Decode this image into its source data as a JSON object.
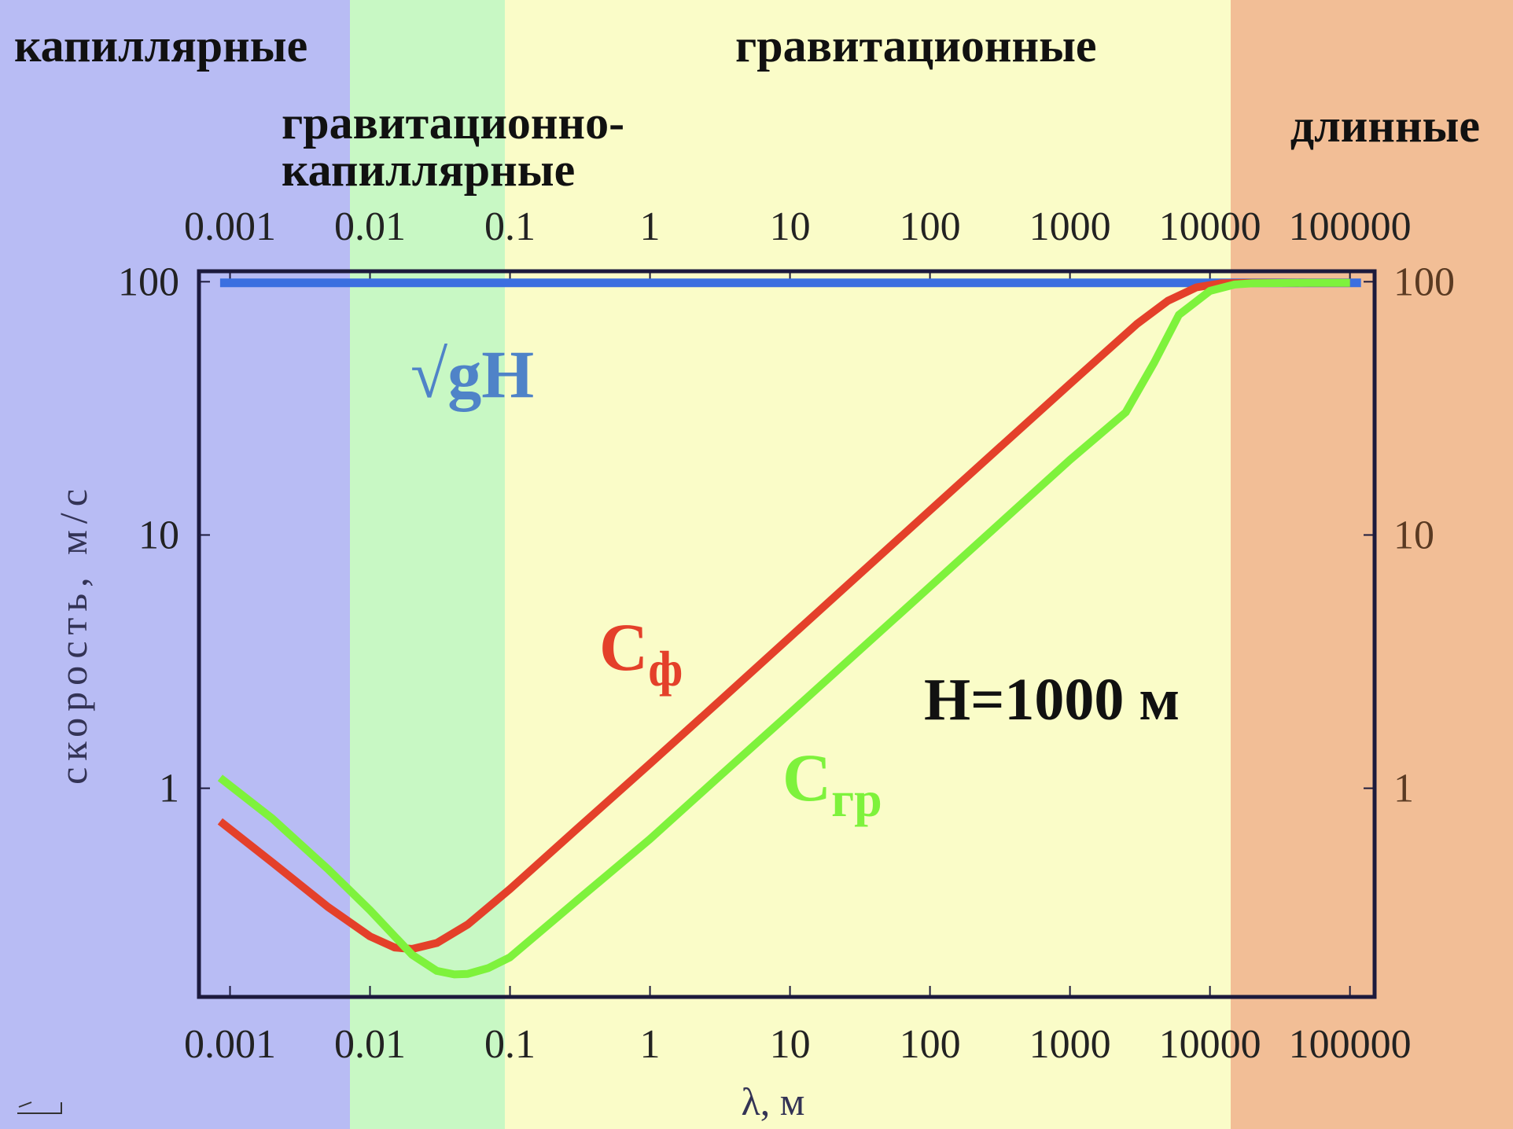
{
  "regions": [
    {
      "key": "cap",
      "labels": [
        "капиллярные"
      ],
      "color": "#b8bcf4"
    },
    {
      "key": "gcap",
      "labels": [
        "гравитационно-",
        "капиллярные"
      ],
      "color": "#c8f8c4"
    },
    {
      "key": "grav",
      "labels": [
        "гравитационные"
      ],
      "color": "#fafcc8"
    },
    {
      "key": "long",
      "labels": [
        "длинные"
      ],
      "color": "#f2be96"
    }
  ],
  "chart_data": {
    "type": "line",
    "x_scale": "log",
    "y_scale": "log",
    "xlabel": "λ, м",
    "ylabel": "скорость, м/с",
    "xlim": [
      0.0006,
      150000
    ],
    "ylim": [
      0.15,
      110
    ],
    "x_ticks": [
      {
        "value": 0.001,
        "label": "0.001"
      },
      {
        "value": 0.01,
        "label": "0.01"
      },
      {
        "value": 0.1,
        "label": "0.1"
      },
      {
        "value": 1,
        "label": "1"
      },
      {
        "value": 10,
        "label": "10"
      },
      {
        "value": 100,
        "label": "100"
      },
      {
        "value": 1000,
        "label": "1000"
      },
      {
        "value": 10000,
        "label": "10000"
      },
      {
        "value": 100000,
        "label": "100000"
      }
    ],
    "y_ticks": [
      {
        "value": 1,
        "label": "1"
      },
      {
        "value": 10,
        "label": "10"
      },
      {
        "value": 100,
        "label": "100"
      }
    ],
    "annotation": {
      "H": "H=1000 м"
    },
    "series": [
      {
        "key": "sqrt_gH",
        "label_main": "√gH",
        "color": "#3b6fe0",
        "x": [
          0.00085,
          120000
        ],
        "y": [
          99,
          99
        ]
      },
      {
        "key": "c_phase",
        "label_main": "C",
        "label_sub": "ф",
        "color": "#e4402a",
        "x": [
          0.00085,
          0.002,
          0.005,
          0.01,
          0.015,
          0.02,
          0.03,
          0.05,
          0.1,
          0.3,
          1,
          3,
          10,
          100,
          1000,
          3000,
          5000,
          8000,
          12000,
          20000,
          50000,
          100000
        ],
        "y": [
          0.74,
          0.51,
          0.34,
          0.26,
          0.235,
          0.232,
          0.245,
          0.29,
          0.4,
          0.69,
          1.25,
          2.16,
          3.95,
          12.5,
          39.5,
          68,
          84,
          95,
          98.5,
          99,
          99,
          99
        ]
      },
      {
        "key": "c_group",
        "label_main": "C",
        "label_sub": "гр",
        "color": "#7ef23c",
        "x": [
          0.00085,
          0.002,
          0.005,
          0.01,
          0.015,
          0.02,
          0.03,
          0.04,
          0.05,
          0.07,
          0.1,
          0.3,
          1,
          3,
          10,
          100,
          1000,
          2500,
          4000,
          6000,
          10000,
          15000,
          20000,
          50000,
          100000
        ],
        "y": [
          1.1,
          0.76,
          0.48,
          0.33,
          0.26,
          0.22,
          0.19,
          0.184,
          0.185,
          0.195,
          0.215,
          0.36,
          0.63,
          1.09,
          1.98,
          6.25,
          19.8,
          30.5,
          48,
          74,
          92,
          97.5,
          98.5,
          99,
          99
        ]
      }
    ]
  }
}
